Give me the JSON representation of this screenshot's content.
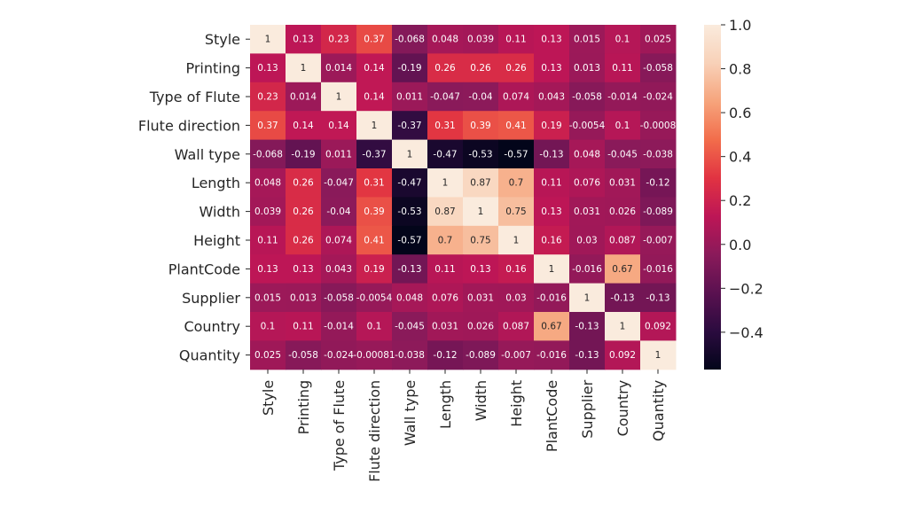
{
  "chart_data": {
    "type": "heatmap",
    "title": "",
    "xlabel": "",
    "ylabel": "",
    "labels": [
      "Style",
      "Printing",
      "Type of Flute",
      "Flute direction",
      "Wall type",
      "Length",
      "Width",
      "Height",
      "PlantCode",
      "Supplier",
      "Country",
      "Quantity"
    ],
    "values": [
      [
        1,
        0.13,
        0.23,
        0.37,
        -0.068,
        0.048,
        0.039,
        0.11,
        0.13,
        0.015,
        0.1,
        0.025
      ],
      [
        0.13,
        1,
        0.014,
        0.14,
        -0.19,
        0.26,
        0.26,
        0.26,
        0.13,
        0.013,
        0.11,
        -0.058
      ],
      [
        0.23,
        0.014,
        1,
        0.14,
        0.011,
        -0.047,
        -0.04,
        0.074,
        0.043,
        -0.058,
        -0.014,
        -0.024
      ],
      [
        0.37,
        0.14,
        0.14,
        1,
        -0.37,
        0.31,
        0.39,
        0.41,
        0.19,
        -0.0054,
        0.1,
        -0.0008
      ],
      [
        -0.068,
        -0.19,
        0.011,
        -0.37,
        1,
        -0.47,
        -0.53,
        -0.57,
        -0.13,
        0.048,
        -0.045,
        -0.038
      ],
      [
        0.048,
        0.26,
        -0.047,
        0.31,
        -0.47,
        1,
        0.87,
        0.7,
        0.11,
        0.076,
        0.031,
        -0.12
      ],
      [
        0.039,
        0.26,
        -0.04,
        0.39,
        -0.53,
        0.87,
        1,
        0.75,
        0.13,
        0.031,
        0.026,
        -0.089
      ],
      [
        0.11,
        0.26,
        0.074,
        0.41,
        -0.57,
        0.7,
        0.75,
        1,
        0.16,
        0.03,
        0.087,
        -0.007
      ],
      [
        0.13,
        0.13,
        0.043,
        0.19,
        -0.13,
        0.11,
        0.13,
        0.16,
        1,
        -0.016,
        0.67,
        -0.016
      ],
      [
        0.015,
        0.013,
        -0.058,
        -0.0054,
        0.048,
        0.076,
        0.031,
        0.03,
        -0.016,
        1,
        -0.13,
        -0.13
      ],
      [
        0.1,
        0.11,
        -0.014,
        0.1,
        -0.045,
        0.031,
        0.026,
        0.087,
        0.67,
        -0.13,
        1,
        0.092
      ],
      [
        0.025,
        -0.058,
        -0.024,
        -0.00081,
        -0.038,
        -0.12,
        -0.089,
        -0.007,
        -0.016,
        -0.13,
        0.092,
        1
      ]
    ],
    "cell_text": [
      [
        "1",
        "0.13",
        "0.23",
        "0.37",
        "-0.068",
        "0.048",
        "0.039",
        "0.11",
        "0.13",
        "0.015",
        "0.1",
        "0.025"
      ],
      [
        "0.13",
        "1",
        "0.014",
        "0.14",
        "-0.19",
        "0.26",
        "0.26",
        "0.26",
        "0.13",
        "0.013",
        "0.11",
        "-0.058"
      ],
      [
        "0.23",
        "0.014",
        "1",
        "0.14",
        "0.011",
        "-0.047",
        "-0.04",
        "0.074",
        "0.043",
        "-0.058",
        "-0.014",
        "-0.024"
      ],
      [
        "0.37",
        "0.14",
        "0.14",
        "1",
        "-0.37",
        "0.31",
        "0.39",
        "0.41",
        "0.19",
        "-0.0054",
        "0.1",
        "-0.0008"
      ],
      [
        "-0.068",
        "-0.19",
        "0.011",
        "-0.37",
        "1",
        "-0.47",
        "-0.53",
        "-0.57",
        "-0.13",
        "0.048",
        "-0.045",
        "-0.038"
      ],
      [
        "0.048",
        "0.26",
        "-0.047",
        "0.31",
        "-0.47",
        "1",
        "0.87",
        "0.7",
        "0.11",
        "0.076",
        "0.031",
        "-0.12"
      ],
      [
        "0.039",
        "0.26",
        "-0.04",
        "0.39",
        "-0.53",
        "0.87",
        "1",
        "0.75",
        "0.13",
        "0.031",
        "0.026",
        "-0.089"
      ],
      [
        "0.11",
        "0.26",
        "0.074",
        "0.41",
        "-0.57",
        "0.7",
        "0.75",
        "1",
        "0.16",
        "0.03",
        "0.087",
        "-0.007"
      ],
      [
        "0.13",
        "0.13",
        "0.043",
        "0.19",
        "-0.13",
        "0.11",
        "0.13",
        "0.16",
        "1",
        "-0.016",
        "0.67",
        "-0.016"
      ],
      [
        "0.015",
        "0.013",
        "-0.058",
        "-0.0054",
        "0.048",
        "0.076",
        "0.031",
        "0.03",
        "-0.016",
        "1",
        "-0.13",
        "-0.13"
      ],
      [
        "0.1",
        "0.11",
        "-0.014",
        "0.1",
        "-0.045",
        "0.031",
        "0.026",
        "0.087",
        "0.67",
        "-0.13",
        "1",
        "0.092"
      ],
      [
        "0.025",
        "-0.058",
        "-0.024",
        "-0.00081",
        "-0.038",
        "-0.12",
        "-0.089",
        "-0.007",
        "-0.016",
        "-0.13",
        "0.092",
        "1"
      ]
    ],
    "colorbar": {
      "min": -0.57,
      "max": 1.0,
      "ticks": [
        1.0,
        0.8,
        0.6,
        0.4,
        0.2,
        0.0,
        -0.2,
        -0.4
      ],
      "tick_labels": [
        "1.0",
        "0.8",
        "0.6",
        "0.4",
        "0.2",
        "0.0",
        "−0.2",
        "−0.4"
      ],
      "colormap": "rocket",
      "color_stops": [
        "#03051a",
        "#2b0b3f",
        "#5a1150",
        "#8a1a5a",
        "#bd1656",
        "#e13342",
        "#f26d4b",
        "#f6a47c",
        "#f8d1b8",
        "#faebdd"
      ]
    },
    "grid": false,
    "legend": "colorbar-right"
  }
}
